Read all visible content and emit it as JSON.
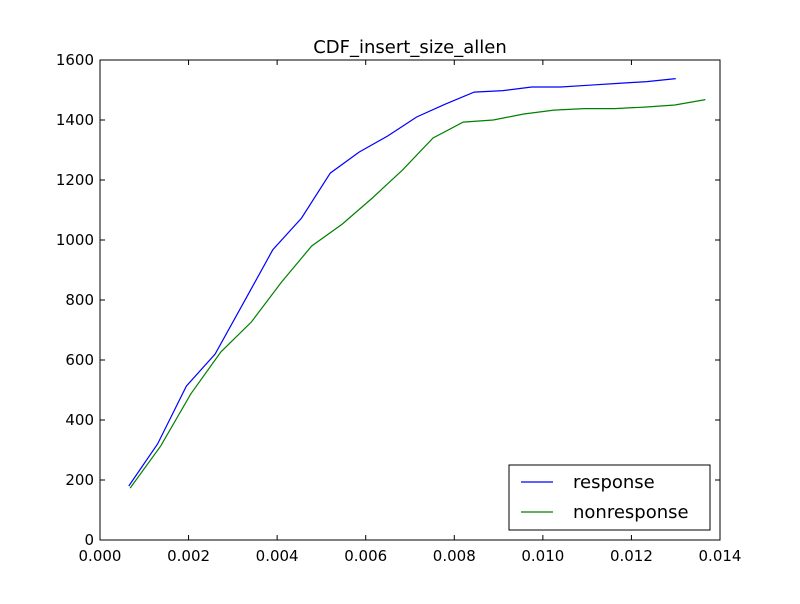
{
  "chart_data": {
    "type": "line",
    "title": "CDF_insert_size_allen",
    "xlabel": "",
    "ylabel": "",
    "xlim": [
      0.0,
      0.014
    ],
    "ylim": [
      0,
      1600
    ],
    "x_ticks": [
      "0.000",
      "0.002",
      "0.004",
      "0.006",
      "0.008",
      "0.010",
      "0.012",
      "0.014"
    ],
    "y_ticks": [
      "0",
      "200",
      "400",
      "600",
      "800",
      "1000",
      "1200",
      "1400",
      "1600"
    ],
    "grid": false,
    "legend_position": "lower-right",
    "series": [
      {
        "name": "response",
        "color": "#0000ff",
        "x": [
          0.00065,
          0.0013,
          0.00195,
          0.0026,
          0.00325,
          0.0039,
          0.00455,
          0.0052,
          0.00585,
          0.0065,
          0.00715,
          0.0078,
          0.00845,
          0.0091,
          0.00975,
          0.0104,
          0.01105,
          0.0117,
          0.01235,
          0.013
        ],
        "y": [
          180,
          320,
          513,
          620,
          793,
          967,
          1073,
          1223,
          1293,
          1347,
          1410,
          1453,
          1493,
          1498,
          1510,
          1510,
          1516,
          1522,
          1528,
          1538
        ]
      },
      {
        "name": "nonresponse",
        "color": "#008000",
        "x": [
          0.00068,
          0.00137,
          0.00205,
          0.00273,
          0.00342,
          0.0041,
          0.00478,
          0.00547,
          0.00615,
          0.00683,
          0.00752,
          0.0082,
          0.00888,
          0.00957,
          0.01025,
          0.01093,
          0.01162,
          0.0123,
          0.01298,
          0.01367
        ],
        "y": [
          173,
          313,
          487,
          627,
          727,
          860,
          980,
          1053,
          1140,
          1233,
          1340,
          1393,
          1400,
          1420,
          1433,
          1438,
          1438,
          1443,
          1450,
          1468
        ]
      }
    ]
  }
}
